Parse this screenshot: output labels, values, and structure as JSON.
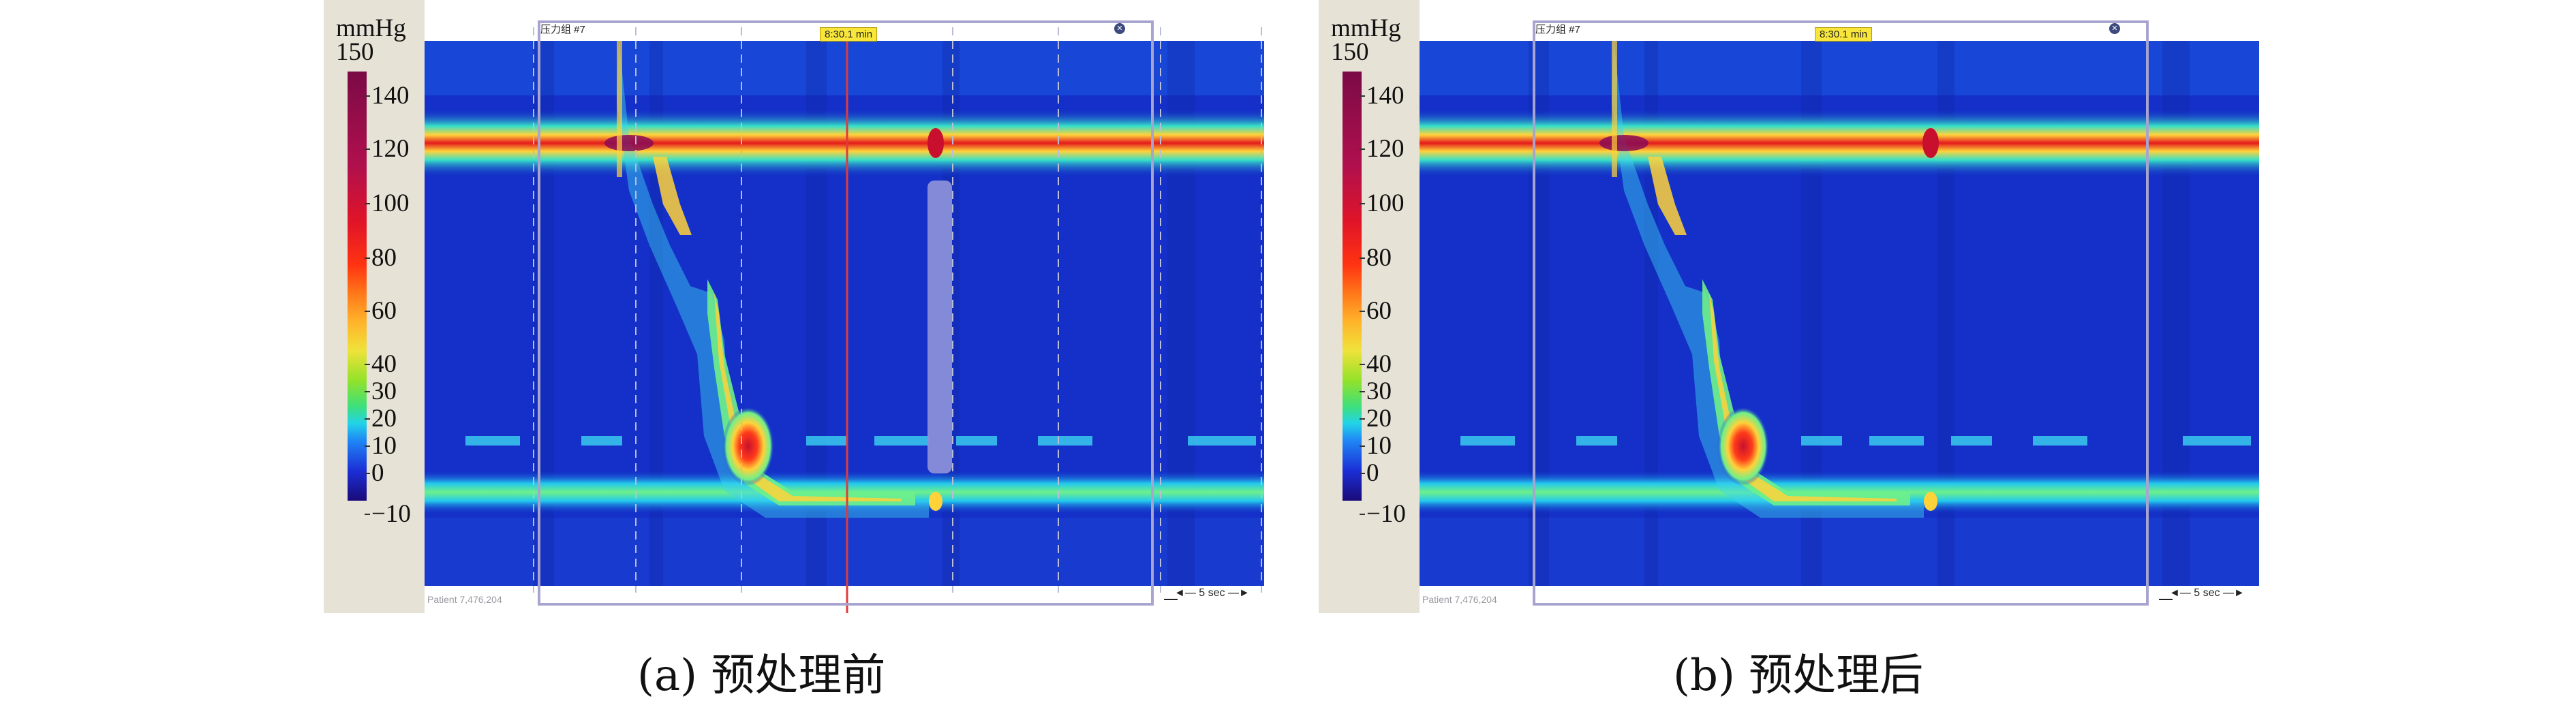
{
  "legend": {
    "unit": "mmHg",
    "max": "150",
    "ticks": [
      "140",
      "120",
      "100",
      "80",
      "60",
      "40",
      "30",
      "20",
      "10",
      "0",
      "−10"
    ]
  },
  "panels": [
    {
      "id": "a",
      "caption": "(a) 预处理前",
      "trace_label": "压力组 #7",
      "time_marker": "8:30.1 min",
      "patient": "Patient 7,476,204",
      "scale": "5 sec",
      "artifact_visible": true
    },
    {
      "id": "b",
      "caption": "(b) 预处理后",
      "trace_label": "压力组 #7",
      "time_marker": "8:30.1 min",
      "patient": "Patient 7,476,204",
      "scale": "5 sec",
      "artifact_visible": false
    }
  ],
  "colors": {
    "background": "#1430c8",
    "band_hot": "#e31a1c",
    "band_warm": "#ffd23a",
    "band_cool": "#32e0a0"
  }
}
